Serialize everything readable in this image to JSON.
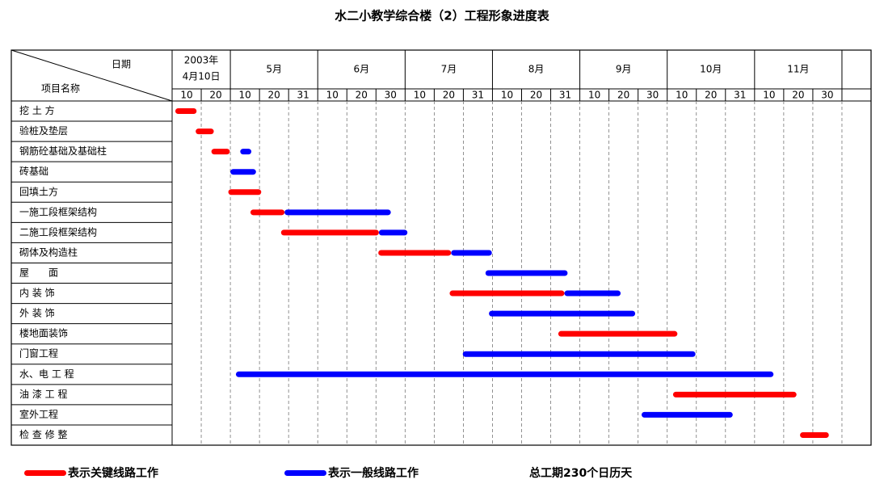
{
  "chart_data": {
    "type": "gantt",
    "title": "水二小教学综合楼（2）工程形象进度表",
    "header_date": "日期",
    "header_name": "项目名称",
    "periods": [
      {
        "label": [
          "2003年",
          "4月10日"
        ],
        "days": [
          10,
          20
        ]
      },
      {
        "label": "5月",
        "days": [
          10,
          20,
          31
        ]
      },
      {
        "label": "6月",
        "days": [
          10,
          20,
          30
        ]
      },
      {
        "label": "7月",
        "days": [
          10,
          20,
          31
        ]
      },
      {
        "label": "8月",
        "days": [
          10,
          20,
          31
        ]
      },
      {
        "label": "9月",
        "days": [
          10,
          20,
          30
        ]
      },
      {
        "label": "10月",
        "days": [
          10,
          20,
          31
        ]
      },
      {
        "label": "11月",
        "days": [
          10,
          20,
          30
        ]
      }
    ],
    "xlim": [
      0,
      24
    ],
    "tasks": [
      {
        "name": "挖 土 方",
        "bars": [
          {
            "start": 0.11,
            "end": 0.84,
            "color": "#ff0000"
          }
        ]
      },
      {
        "name": "验桩及垫层",
        "bars": [
          {
            "start": 0.81,
            "end": 1.43,
            "color": "#ff0000"
          }
        ]
      },
      {
        "name": "钢筋砼基础及基础柱",
        "bars": [
          {
            "start": 1.35,
            "end": 1.98,
            "color": "#ff0000"
          },
          {
            "start": 2.34,
            "end": 2.72,
            "color": "#0000ff"
          }
        ]
      },
      {
        "name": "砖基础",
        "bars": [
          {
            "start": 2.0,
            "end": 2.88,
            "color": "#0000ff"
          }
        ]
      },
      {
        "name": "回填土方",
        "bars": [
          {
            "start": 1.93,
            "end": 3.06,
            "color": "#ff0000"
          }
        ]
      },
      {
        "name": "一施工段框架结构",
        "bars": [
          {
            "start": 2.69,
            "end": 3.86,
            "color": "#ff0000"
          },
          {
            "start": 3.86,
            "end": 7.51,
            "color": "#0000ff"
          }
        ]
      },
      {
        "name": "二施工段框架结构",
        "bars": [
          {
            "start": 3.74,
            "end": 7.1,
            "color": "#ff0000"
          },
          {
            "start": 7.1,
            "end": 8.08,
            "color": "#0000ff"
          }
        ]
      },
      {
        "name": "砌体及构造柱",
        "bars": [
          {
            "start": 7.08,
            "end": 9.58,
            "color": "#ff0000"
          },
          {
            "start": 9.58,
            "end": 10.98,
            "color": "#0000ff"
          }
        ]
      },
      {
        "name": "屋　　面",
        "bars": [
          {
            "start": 10.76,
            "end": 13.58,
            "color": "#0000ff"
          }
        ]
      },
      {
        "name": "内 装 饰",
        "bars": [
          {
            "start": 9.53,
            "end": 13.47,
            "color": "#ff0000"
          },
          {
            "start": 13.47,
            "end": 15.4,
            "color": "#0000ff"
          }
        ]
      },
      {
        "name": "外 装 饰",
        "bars": [
          {
            "start": 10.88,
            "end": 15.9,
            "color": "#0000ff"
          }
        ]
      },
      {
        "name": "楼地面装饰",
        "bars": [
          {
            "start": 13.26,
            "end": 17.35,
            "color": "#ff0000"
          }
        ]
      },
      {
        "name": "门窗工程",
        "bars": [
          {
            "start": 9.98,
            "end": 17.97,
            "color": "#0000ff"
          }
        ]
      },
      {
        "name": "水、电 工 程",
        "bars": [
          {
            "start": 2.19,
            "end": 20.65,
            "color": "#0000ff"
          }
        ]
      },
      {
        "name": "油 漆 工 程",
        "bars": [
          {
            "start": 17.2,
            "end": 21.44,
            "color": "#ff0000"
          }
        ]
      },
      {
        "name": "室外工程",
        "bars": [
          {
            "start": 16.12,
            "end": 19.25,
            "color": "#0000ff"
          }
        ]
      },
      {
        "name": "检 查 修 整",
        "bars": [
          {
            "start": 21.56,
            "end": 22.55,
            "color": "#ff0000"
          }
        ]
      }
    ],
    "legend": [
      {
        "color": "#ff0000",
        "label": "表示关键线路工作"
      },
      {
        "color": "#0000ff",
        "label": "表示一般线路工作"
      }
    ],
    "note": "总工期230个日历天"
  }
}
